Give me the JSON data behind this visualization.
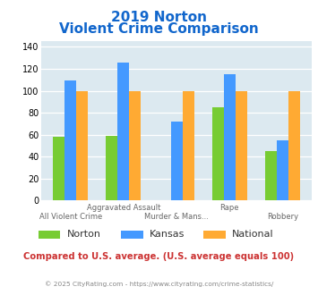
{
  "title_line1": "2019 Norton",
  "title_line2": "Violent Crime Comparison",
  "groups": [
    {
      "label": "All Violent Crime",
      "norton": 58,
      "kansas": 109,
      "national": 100
    },
    {
      "label": "Aggravated Assault",
      "norton": 59,
      "kansas": 126,
      "national": 100
    },
    {
      "label": "Murder & Mans...",
      "norton": 0,
      "kansas": 72,
      "national": 100
    },
    {
      "label": "Rape",
      "norton": 85,
      "kansas": 115,
      "national": 100
    },
    {
      "label": "Robbery",
      "norton": 45,
      "kansas": 55,
      "national": 100
    }
  ],
  "top_labels": [
    "",
    "Aggravated Assault",
    "",
    "Rape",
    ""
  ],
  "bottom_labels": [
    "All Violent Crime",
    "",
    "Murder & Mans...",
    "",
    "Robbery"
  ],
  "color_norton": "#77cc33",
  "color_kansas": "#4499ff",
  "color_national": "#ffaa33",
  "ylim": [
    0,
    145
  ],
  "yticks": [
    0,
    20,
    40,
    60,
    80,
    100,
    120,
    140
  ],
  "bg_color": "#dce9f0",
  "title_color": "#1166cc",
  "footer_text": "Compared to U.S. average. (U.S. average equals 100)",
  "copyright_text": "© 2025 CityRating.com - https://www.cityrating.com/crime-statistics/",
  "footer_color": "#cc3333",
  "copyright_color": "#888888",
  "legend_items": [
    {
      "color": "#77cc33",
      "label": "Norton"
    },
    {
      "color": "#4499ff",
      "label": "Kansas"
    },
    {
      "color": "#ffaa33",
      "label": "National"
    }
  ]
}
